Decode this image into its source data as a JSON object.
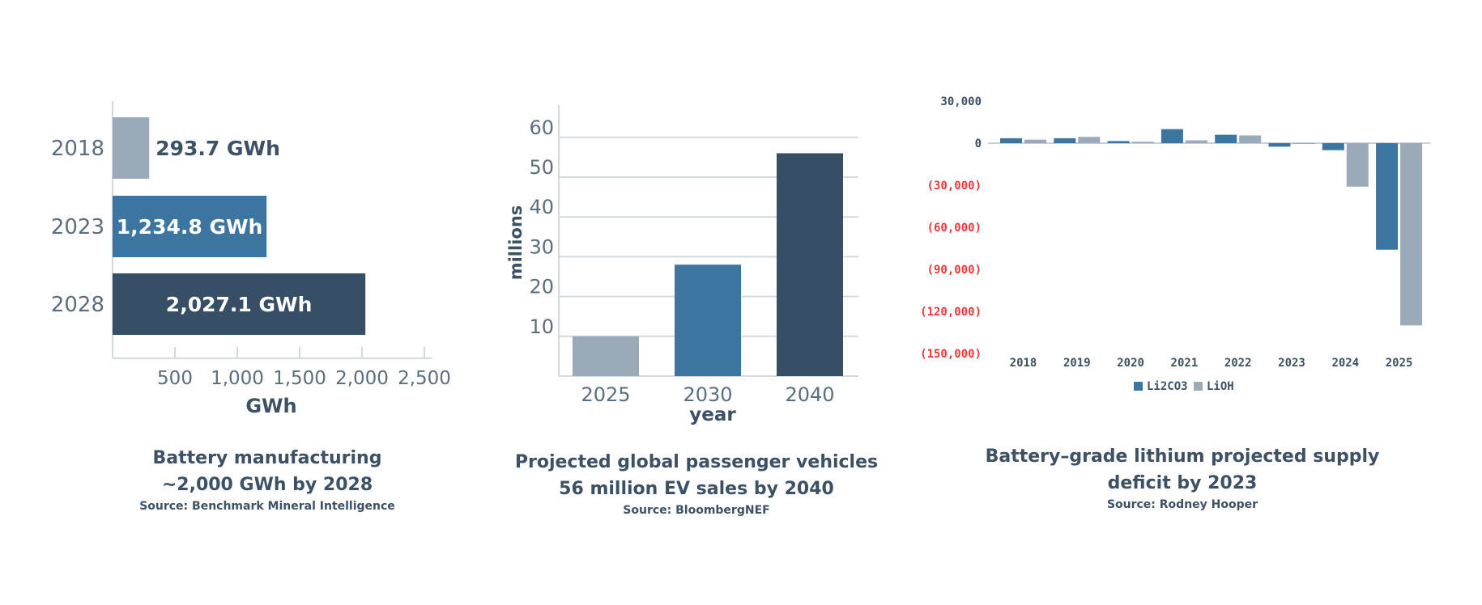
{
  "chart_data": [
    {
      "type": "bar",
      "orientation": "horizontal",
      "title": "Battery manufacturing",
      "subtitle": "~2,000 GWh by 2028",
      "source": "Source: Benchmark Mineral Intelligence",
      "categories": [
        "2018",
        "2023",
        "2028"
      ],
      "values": [
        293.7,
        1234.8,
        2027.1
      ],
      "data_labels": [
        "293.7 GWh",
        "1,234.8 GWh",
        "2,027.1 GWh"
      ],
      "colors": [
        "#9aaab8",
        "#3b75a0",
        "#364f66"
      ],
      "xlabel": "GWh",
      "ylabel": "",
      "xticks": [
        500,
        1000,
        1500,
        2000,
        2500
      ],
      "xtick_labels": [
        "500",
        "1,000",
        "1,500",
        "2,000",
        "2,500"
      ],
      "xlim": [
        0,
        2500
      ],
      "grid": false
    },
    {
      "type": "bar",
      "title": "Projected global passenger vehicles",
      "subtitle": "56 million EV sales by 2040",
      "source": "Source: BloombergNEF",
      "categories": [
        "2025",
        "2030",
        "2040"
      ],
      "values": [
        10,
        28,
        56
      ],
      "colors": [
        "#9aaab8",
        "#3b75a0",
        "#364f66"
      ],
      "xlabel": "year",
      "ylabel": "millions",
      "yticks": [
        10,
        20,
        30,
        40,
        50,
        60
      ],
      "ylim": [
        0,
        65
      ],
      "grid": true
    },
    {
      "type": "bar",
      "title": "Battery–grade lithium projected supply",
      "subtitle": "deficit by 2023",
      "source": "Source: Rodney Hooper",
      "categories": [
        "2018",
        "2019",
        "2020",
        "2021",
        "2022",
        "2023",
        "2024",
        "2025"
      ],
      "series": [
        {
          "name": "Li2CO3",
          "color": "#3b75a0",
          "values": [
            3500,
            3500,
            1500,
            10000,
            6000,
            -2500,
            -5000,
            -76000
          ]
        },
        {
          "name": "LiOH",
          "color": "#9aaab8",
          "values": [
            2500,
            4500,
            1000,
            2000,
            5500,
            -500,
            -31000,
            -130000
          ]
        }
      ],
      "yticks": [
        30000,
        0,
        -30000,
        -60000,
        -90000,
        -120000,
        -150000
      ],
      "ytick_labels": [
        "30,000",
        "0",
        "(30,000)",
        "(60,000)",
        "(90,000)",
        "(120,000)",
        "(150,000)"
      ],
      "negative_label_color": "#e8383d",
      "ylim": [
        -150000,
        30000
      ],
      "legend": "bottom-center",
      "grid": false
    }
  ]
}
